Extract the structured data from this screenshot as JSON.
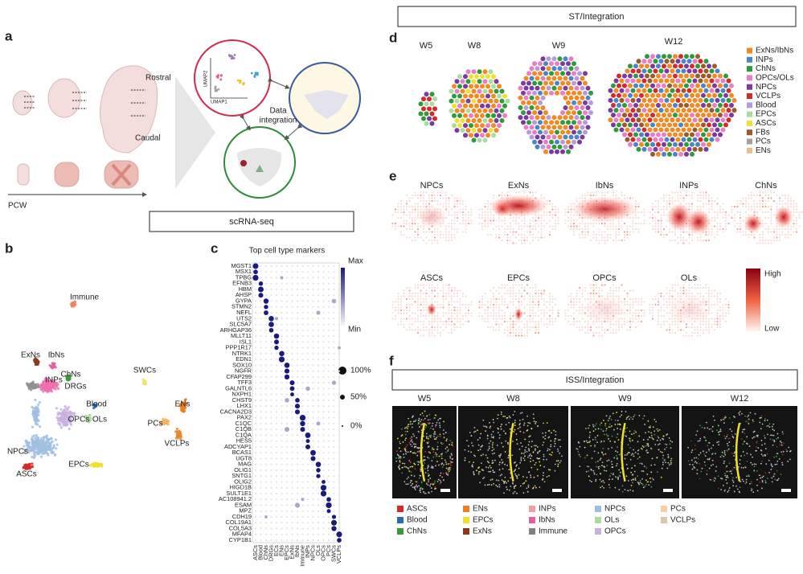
{
  "banners": {
    "scrna": "scRNA-seq",
    "st": "ST/Integration",
    "iss": "ISS/Integration"
  },
  "panel_labels": [
    "a",
    "b",
    "c",
    "d",
    "e",
    "f"
  ],
  "a": {
    "rostral": "Rostral",
    "caudal": "Caudal",
    "pcw": "PCW",
    "umap2": "UMAP2",
    "umap1": "UMAP1",
    "integration": [
      "Data",
      "integration"
    ]
  },
  "b": {
    "clusters": [
      {
        "label": "Immune",
        "color": "#f08060"
      },
      {
        "label": "ExNs",
        "color": "#8a3a1a"
      },
      {
        "label": "IbNs",
        "color": "#e060a0"
      },
      {
        "label": "INPs",
        "color": "#f070b0"
      },
      {
        "label": "ChNs",
        "color": "#3a9a3a"
      },
      {
        "label": "DRGs",
        "color": "#909090"
      },
      {
        "label": "SWCs",
        "color": "#f0e060"
      },
      {
        "label": "Blood",
        "color": "#2a6ab0"
      },
      {
        "label": "ENs",
        "color": "#f07f1e"
      },
      {
        "label": "OPCs",
        "color": "#c8b0e0"
      },
      {
        "label": "OLs",
        "color": "#b0d8a0"
      },
      {
        "label": "PCs",
        "color": "#f5b060"
      },
      {
        "label": "VCLPs",
        "color": "#e88a30"
      },
      {
        "label": "NPCs",
        "color": "#a0c0e0"
      },
      {
        "label": "EPCs",
        "color": "#f0e030"
      },
      {
        "label": "ASCs",
        "color": "#d42a2a"
      }
    ]
  },
  "c": {
    "title": "Top cell type markers",
    "genes": [
      "MGST1",
      "MSX1",
      "TPBG",
      "EFNB3",
      "HBM",
      "AHSP",
      "GYPA",
      "STMN2",
      "NEFL",
      "UTS2",
      "SLC5A7",
      "ARHGAP36",
      "MLLT11",
      "ISL1",
      "PPP1R17",
      "NTRK1",
      "EDN1",
      "SOX10",
      "NGFR",
      "CFAP299",
      "TFF3",
      "GALNTL6",
      "NXPH1",
      "CHST9",
      "LHX1",
      "CACNA2D3",
      "PAX2",
      "C1QC",
      "C1QB",
      "C1QA",
      "HES5",
      "ADCYAP1",
      "BCAS1",
      "UGT8",
      "MAG",
      "OLIG1",
      "SNTG1",
      "OLIG2",
      "HIGD1B",
      "SULT1E1",
      "AC108941.2",
      "ESAM",
      "MPZ",
      "CDH19",
      "COL19A1",
      "COL5A3",
      "MFAP4",
      "CYP1B1"
    ],
    "categories": [
      "ASCs",
      "Blood",
      "ChNs",
      "DRGs",
      "ECs",
      "ENs",
      "EPCs",
      "ExNs",
      "IbNs",
      "Immune",
      "INPs",
      "NPCs",
      "OLs",
      "OPCs",
      "PCs",
      "SWCs",
      "VCLPs"
    ],
    "color_legend": {
      "max": "Max",
      "min": "Min"
    },
    "size_legend": [
      "100%",
      "50%",
      "0%"
    ]
  },
  "d": {
    "stages": [
      "W5",
      "W8",
      "W9",
      "W12"
    ],
    "legend": [
      {
        "label": "ExNs/IbNs",
        "color": "#f08a24"
      },
      {
        "label": "INPs",
        "color": "#4a86c5"
      },
      {
        "label": "ChNs",
        "color": "#2e9a3c"
      },
      {
        "label": "OPCs/OLs",
        "color": "#e87ec8"
      },
      {
        "label": "NPCs",
        "color": "#7a3aa0"
      },
      {
        "label": "VCLPs",
        "color": "#d42a2a"
      },
      {
        "label": "Blood",
        "color": "#b89ad8"
      },
      {
        "label": "EPCs",
        "color": "#a8dca0"
      },
      {
        "label": "ASCs",
        "color": "#f0e030"
      },
      {
        "label": "FBs",
        "color": "#9a5a2a"
      },
      {
        "label": "PCs",
        "color": "#a0a0a0"
      },
      {
        "label": "ENs",
        "color": "#e8c090"
      }
    ]
  },
  "e": {
    "maps": [
      "NPCs",
      "ExNs",
      "IbNs",
      "INPs",
      "ChNs",
      "ASCs",
      "EPCs",
      "OPCs",
      "OLs"
    ],
    "scale": {
      "high": "High",
      "low": "Low"
    }
  },
  "f": {
    "stages": [
      "W5",
      "W8",
      "W9",
      "W12"
    ],
    "legend": [
      {
        "label": "ASCs",
        "color": "#d42a2a"
      },
      {
        "label": "ENs",
        "color": "#f07f1e"
      },
      {
        "label": "INPs",
        "color": "#f0a0a0"
      },
      {
        "label": "NPCs",
        "color": "#a0c0e0"
      },
      {
        "label": "PCs",
        "color": "#f5cfa0"
      },
      {
        "label": "Blood",
        "color": "#2a6ab0"
      },
      {
        "label": "EPCs",
        "color": "#f0e030"
      },
      {
        "label": "IbNs",
        "color": "#e060a0"
      },
      {
        "label": "OLs",
        "color": "#b0d8a0"
      },
      {
        "label": "VCLPs",
        "color": "#d8c8a8"
      },
      {
        "label": "ChNs",
        "color": "#3a9a3a"
      },
      {
        "label": "ExNs",
        "color": "#8a3a1a"
      },
      {
        "label": "Immune",
        "color": "#808080"
      },
      {
        "label": "OPCs",
        "color": "#c8b0e0"
      }
    ]
  }
}
